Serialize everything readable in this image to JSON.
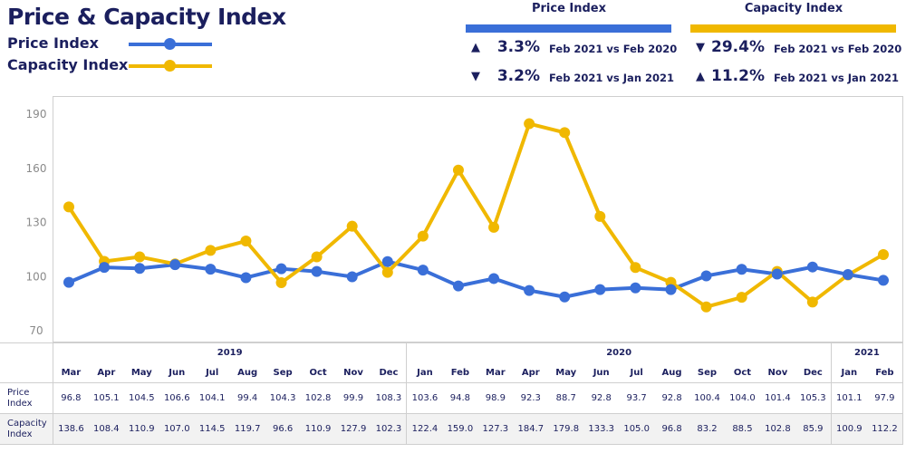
{
  "title": "Price & Capacity Index",
  "legend": [
    {
      "label": "Price Index",
      "color": "#3a6fd8"
    },
    {
      "label": "Capacity Index",
      "color": "#f0b800"
    }
  ],
  "kpis": {
    "price": {
      "title": "Price Index",
      "items": [
        {
          "dir": "up",
          "value": "3.3%",
          "label": "Feb 2021 vs Feb 2020"
        },
        {
          "dir": "down",
          "value": "3.2%",
          "label": "Feb 2021 vs Jan 2021"
        }
      ]
    },
    "capacity": {
      "title": "Capacity Index",
      "items": [
        {
          "dir": "down",
          "value": "29.4%",
          "label": "Feb 2021 vs Feb 2020"
        },
        {
          "dir": "up",
          "value": "11.2%",
          "label": "Feb 2021 vs Jan 2021"
        }
      ]
    }
  },
  "chart_data": {
    "type": "line",
    "title": "Price & Capacity Index",
    "ylim": [
      70,
      190
    ],
    "yticks": [
      70,
      100,
      130,
      160,
      190
    ],
    "years": [
      {
        "label": "2019",
        "span": 10
      },
      {
        "label": "2020",
        "span": 12
      },
      {
        "label": "2021",
        "span": 2
      }
    ],
    "categories": [
      "Mar",
      "Apr",
      "May",
      "Jun",
      "Jul",
      "Aug",
      "Sep",
      "Oct",
      "Nov",
      "Dec",
      "Jan",
      "Feb",
      "Mar",
      "Apr",
      "May",
      "Jun",
      "Jul",
      "Aug",
      "Sep",
      "Oct",
      "Nov",
      "Dec",
      "Jan",
      "Feb"
    ],
    "series": [
      {
        "name": "Price Index",
        "row_label": "Price Index",
        "color": "#3a6fd8",
        "values": [
          96.8,
          105.1,
          104.5,
          106.6,
          104.1,
          99.4,
          104.3,
          102.8,
          99.9,
          108.3,
          103.6,
          94.8,
          98.9,
          92.3,
          88.7,
          92.8,
          93.7,
          92.8,
          100.4,
          104.0,
          101.4,
          105.3,
          101.1,
          97.9
        ]
      },
      {
        "name": "Capacity Index",
        "row_label": "Capacity Index",
        "color": "#f0b800",
        "values": [
          138.6,
          108.4,
          110.9,
          107.0,
          114.5,
          119.7,
          96.6,
          110.9,
          127.9,
          102.3,
          122.4,
          159.0,
          127.3,
          184.7,
          179.8,
          133.3,
          105.0,
          96.8,
          83.2,
          88.5,
          102.8,
          85.9,
          100.9,
          112.2
        ]
      }
    ]
  }
}
